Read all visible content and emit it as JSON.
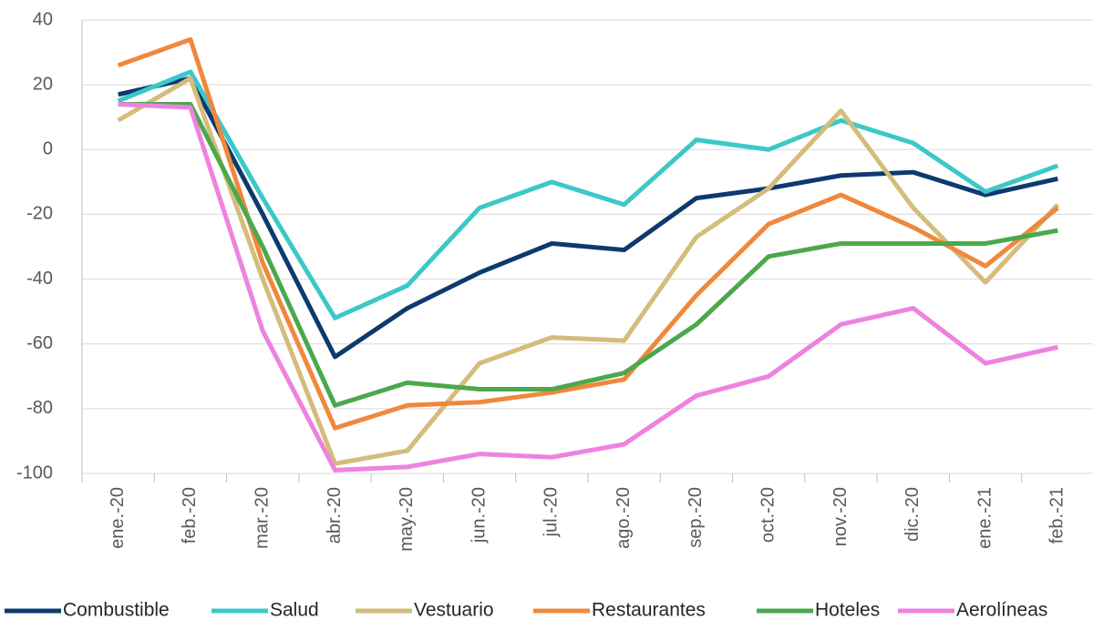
{
  "chart_data": {
    "type": "line",
    "categories": [
      "ene.-20",
      "feb.-20",
      "mar.-20",
      "abr.-20",
      "may.-20",
      "jun.-20",
      "jul.-20",
      "ago.-20",
      "sep.-20",
      "oct.-20",
      "nov.-20",
      "dic.-20",
      "ene.-21",
      "feb.-21"
    ],
    "series": [
      {
        "name": "Combustible",
        "color": "#0d3a6e",
        "values": [
          17,
          22,
          -20,
          -64,
          -49,
          -38,
          -29,
          -31,
          -15,
          -12,
          -8,
          -7,
          -14,
          -9
        ]
      },
      {
        "name": "Salud",
        "color": "#3cc8c8",
        "values": [
          15,
          24,
          -15,
          -52,
          -42,
          -18,
          -10,
          -17,
          3,
          0,
          9,
          2,
          -13,
          -5
        ]
      },
      {
        "name": "Vestuario",
        "color": "#d4bc7c",
        "values": [
          9,
          22,
          -40,
          -97,
          -93,
          -66,
          -58,
          -59,
          -27,
          -12,
          12,
          -18,
          -41,
          -17
        ]
      },
      {
        "name": "Restaurantes",
        "color": "#f0883c",
        "values": [
          26,
          34,
          -35,
          -86,
          -79,
          -78,
          -75,
          -71,
          -45,
          -23,
          -14,
          -24,
          -36,
          -18
        ]
      },
      {
        "name": "Hoteles",
        "color": "#4ca84c",
        "values": [
          14,
          14,
          -30,
          -79,
          -72,
          -74,
          -74,
          -69,
          -54,
          -33,
          -29,
          -29,
          -29,
          -25
        ]
      },
      {
        "name": "Aerolíneas",
        "color": "#ee82e0",
        "values": [
          14,
          13,
          -56,
          -99,
          -98,
          -94,
          -95,
          -91,
          -76,
          -70,
          -54,
          -49,
          -66,
          -61
        ]
      }
    ],
    "ylim": [
      -100,
      40
    ],
    "yticks": [
      -100,
      -80,
      -60,
      -40,
      -20,
      0,
      20,
      40
    ],
    "grid": true,
    "legend": "bottom"
  }
}
